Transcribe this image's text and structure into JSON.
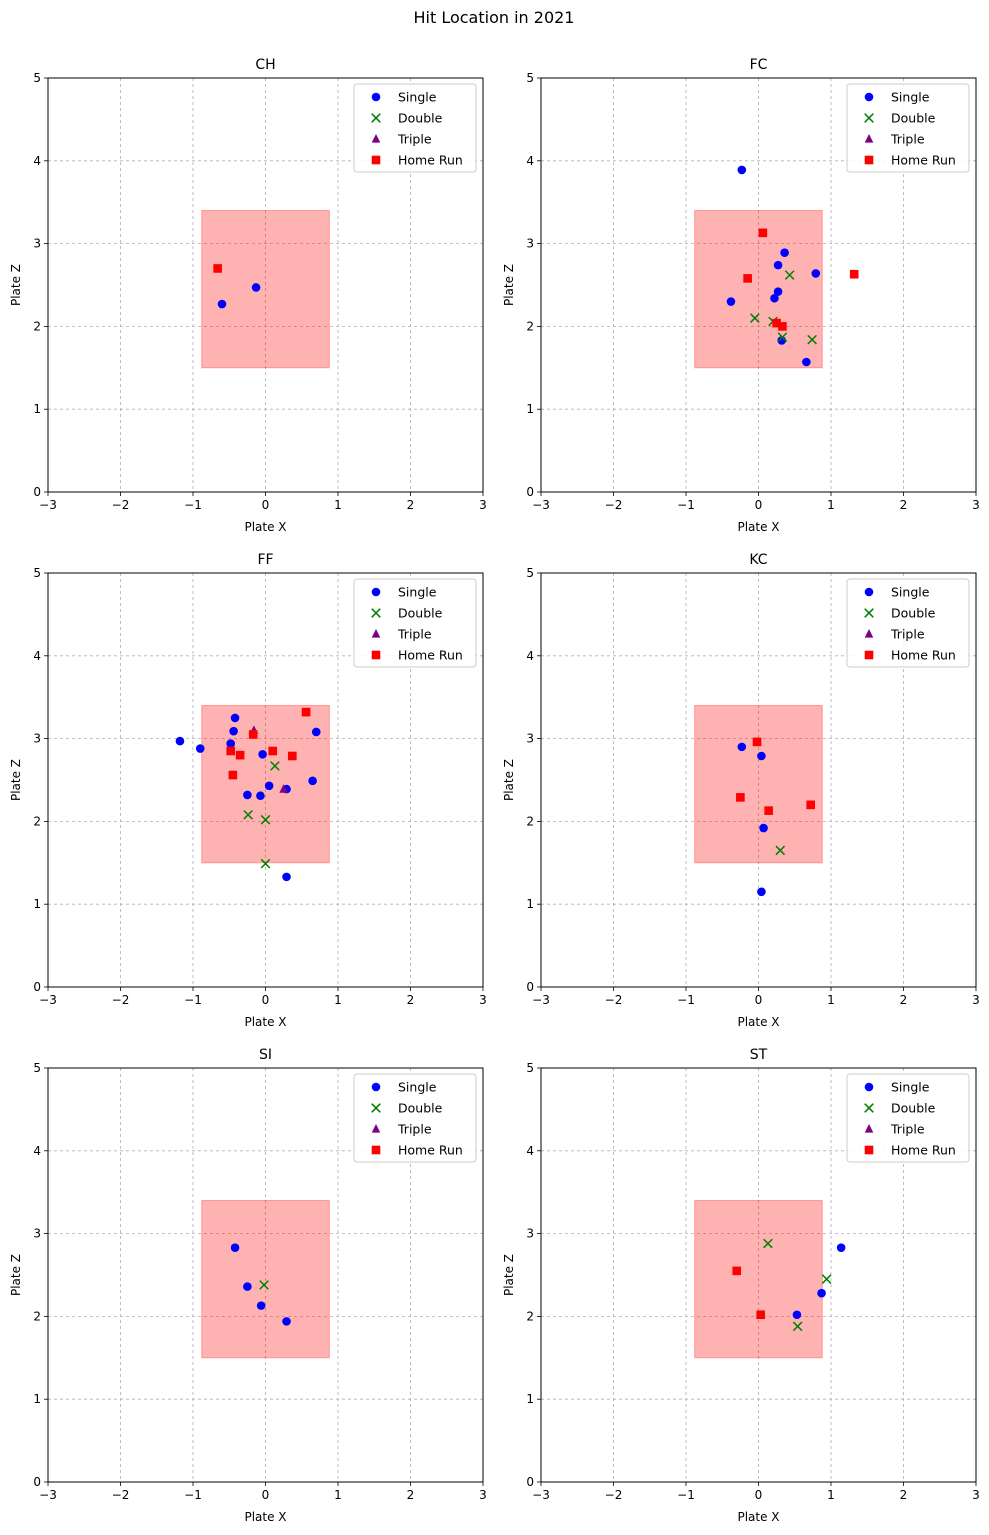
{
  "figure": {
    "title": "Hit Location in 2021"
  },
  "legend": {
    "placement": "top-right",
    "entries": [
      {
        "label": "Single",
        "marker": "circle",
        "color": "#0000ff"
      },
      {
        "label": "Double",
        "marker": "x",
        "color": "#008000"
      },
      {
        "label": "Triple",
        "marker": "triangle",
        "color": "#800080"
      },
      {
        "label": "Home Run",
        "marker": "square",
        "color": "#ff0000"
      }
    ]
  },
  "colors": {
    "strike_zone": "#ff0000",
    "grid": "#b0b0b0"
  },
  "chart_data": [
    {
      "type": "scatter",
      "title": "CH",
      "xlabel": "Plate X",
      "ylabel": "Plate Z",
      "xlim": [
        -3,
        3
      ],
      "ylim": [
        0,
        5
      ],
      "grid": true,
      "xticks": [
        -3,
        -2,
        -1,
        0,
        1,
        2,
        3
      ],
      "yticks": [
        0,
        1,
        2,
        3,
        4,
        5
      ],
      "strike_zone": {
        "x": [
          -0.88,
          0.88
        ],
        "z": [
          1.5,
          3.4
        ]
      },
      "series": [
        {
          "name": "Single",
          "points": [
            [
              -0.6,
              2.27
            ],
            [
              -0.13,
              2.47
            ]
          ]
        },
        {
          "name": "Double",
          "points": []
        },
        {
          "name": "Triple",
          "points": []
        },
        {
          "name": "Home Run",
          "points": [
            [
              -0.66,
              2.7
            ]
          ]
        }
      ]
    },
    {
      "type": "scatter",
      "title": "FC",
      "xlabel": "Plate X",
      "ylabel": "Plate Z",
      "xlim": [
        -3,
        3
      ],
      "ylim": [
        0,
        5
      ],
      "grid": true,
      "xticks": [
        -3,
        -2,
        -1,
        0,
        1,
        2,
        3
      ],
      "yticks": [
        0,
        1,
        2,
        3,
        4,
        5
      ],
      "strike_zone": {
        "x": [
          -0.88,
          0.88
        ],
        "z": [
          1.5,
          3.4
        ]
      },
      "series": [
        {
          "name": "Single",
          "points": [
            [
              -0.23,
              3.89
            ],
            [
              0.36,
              2.89
            ],
            [
              0.27,
              2.74
            ],
            [
              0.79,
              2.64
            ],
            [
              0.27,
              2.42
            ],
            [
              -0.38,
              2.3
            ],
            [
              0.22,
              2.34
            ],
            [
              0.32,
              1.83
            ],
            [
              0.66,
              1.57
            ]
          ]
        },
        {
          "name": "Double",
          "points": [
            [
              0.43,
              2.62
            ],
            [
              -0.05,
              2.1
            ],
            [
              0.2,
              2.06
            ],
            [
              0.33,
              1.87
            ],
            [
              0.74,
              1.84
            ]
          ]
        },
        {
          "name": "Triple",
          "points": []
        },
        {
          "name": "Home Run",
          "points": [
            [
              0.06,
              3.13
            ],
            [
              -0.15,
              2.58
            ],
            [
              1.32,
              2.63
            ],
            [
              0.25,
              2.04
            ],
            [
              0.33,
              2.0
            ]
          ]
        }
      ]
    },
    {
      "type": "scatter",
      "title": "FF",
      "xlabel": "Plate X",
      "ylabel": "Plate Z",
      "xlim": [
        -3,
        3
      ],
      "ylim": [
        0,
        5
      ],
      "grid": true,
      "xticks": [
        -3,
        -2,
        -1,
        0,
        1,
        2,
        3
      ],
      "yticks": [
        0,
        1,
        2,
        3,
        4,
        5
      ],
      "strike_zone": {
        "x": [
          -0.88,
          0.88
        ],
        "z": [
          1.5,
          3.4
        ]
      },
      "series": [
        {
          "name": "Single",
          "points": [
            [
              -1.18,
              2.97
            ],
            [
              -0.9,
              2.88
            ],
            [
              -0.42,
              3.25
            ],
            [
              -0.44,
              3.09
            ],
            [
              -0.48,
              2.94
            ],
            [
              -0.04,
              2.81
            ],
            [
              0.05,
              2.43
            ],
            [
              0.7,
              3.08
            ],
            [
              0.65,
              2.49
            ],
            [
              -0.25,
              2.32
            ],
            [
              -0.07,
              2.31
            ],
            [
              0.29,
              2.39
            ],
            [
              0.29,
              1.33
            ]
          ]
        },
        {
          "name": "Double",
          "points": [
            [
              0.13,
              2.67
            ],
            [
              -0.24,
              2.08
            ],
            [
              0.0,
              2.02
            ],
            [
              0.0,
              1.49
            ]
          ]
        },
        {
          "name": "Triple",
          "points": [
            [
              -0.16,
              3.1
            ],
            [
              0.25,
              2.39
            ]
          ]
        },
        {
          "name": "Home Run",
          "points": [
            [
              0.56,
              3.32
            ],
            [
              -0.17,
              3.05
            ],
            [
              0.1,
              2.85
            ],
            [
              -0.48,
              2.85
            ],
            [
              -0.35,
              2.8
            ],
            [
              0.37,
              2.79
            ],
            [
              -0.45,
              2.56
            ]
          ]
        }
      ]
    },
    {
      "type": "scatter",
      "title": "KC",
      "xlabel": "Plate X",
      "ylabel": "Plate Z",
      "xlim": [
        -3,
        3
      ],
      "ylim": [
        0,
        5
      ],
      "grid": true,
      "xticks": [
        -3,
        -2,
        -1,
        0,
        1,
        2,
        3
      ],
      "yticks": [
        0,
        1,
        2,
        3,
        4,
        5
      ],
      "strike_zone": {
        "x": [
          -0.88,
          0.88
        ],
        "z": [
          1.5,
          3.4
        ]
      },
      "series": [
        {
          "name": "Single",
          "points": [
            [
              -0.23,
              2.9
            ],
            [
              0.04,
              2.79
            ],
            [
              0.07,
              1.92
            ],
            [
              0.04,
              1.15
            ]
          ]
        },
        {
          "name": "Double",
          "points": [
            [
              0.3,
              1.65
            ]
          ]
        },
        {
          "name": "Triple",
          "points": []
        },
        {
          "name": "Home Run",
          "points": [
            [
              -0.02,
              2.96
            ],
            [
              -0.25,
              2.29
            ],
            [
              0.14,
              2.13
            ],
            [
              0.72,
              2.2
            ]
          ]
        }
      ]
    },
    {
      "type": "scatter",
      "title": "SI",
      "xlabel": "Plate X",
      "ylabel": "Plate Z",
      "xlim": [
        -3,
        3
      ],
      "ylim": [
        0,
        5
      ],
      "grid": true,
      "xticks": [
        -3,
        -2,
        -1,
        0,
        1,
        2,
        3
      ],
      "yticks": [
        0,
        1,
        2,
        3,
        4,
        5
      ],
      "strike_zone": {
        "x": [
          -0.88,
          0.88
        ],
        "z": [
          1.5,
          3.4
        ]
      },
      "series": [
        {
          "name": "Single",
          "points": [
            [
              -0.42,
              2.83
            ],
            [
              -0.25,
              2.36
            ],
            [
              -0.06,
              2.13
            ],
            [
              0.29,
              1.94
            ]
          ]
        },
        {
          "name": "Double",
          "points": [
            [
              -0.02,
              2.38
            ]
          ]
        },
        {
          "name": "Triple",
          "points": []
        },
        {
          "name": "Home Run",
          "points": []
        }
      ]
    },
    {
      "type": "scatter",
      "title": "ST",
      "xlabel": "Plate X",
      "ylabel": "Plate Z",
      "xlim": [
        -3,
        3
      ],
      "ylim": [
        0,
        5
      ],
      "grid": true,
      "xticks": [
        -3,
        -2,
        -1,
        0,
        1,
        2,
        3
      ],
      "yticks": [
        0,
        1,
        2,
        3,
        4,
        5
      ],
      "strike_zone": {
        "x": [
          -0.88,
          0.88
        ],
        "z": [
          1.5,
          3.4
        ]
      },
      "series": [
        {
          "name": "Single",
          "points": [
            [
              1.14,
              2.83
            ],
            [
              0.87,
              2.28
            ],
            [
              0.53,
              2.02
            ]
          ]
        },
        {
          "name": "Double",
          "points": [
            [
              0.13,
              2.88
            ],
            [
              0.94,
              2.45
            ],
            [
              0.54,
              1.88
            ]
          ]
        },
        {
          "name": "Triple",
          "points": []
        },
        {
          "name": "Home Run",
          "points": [
            [
              -0.3,
              2.55
            ],
            [
              0.03,
              2.02
            ]
          ]
        }
      ]
    }
  ]
}
